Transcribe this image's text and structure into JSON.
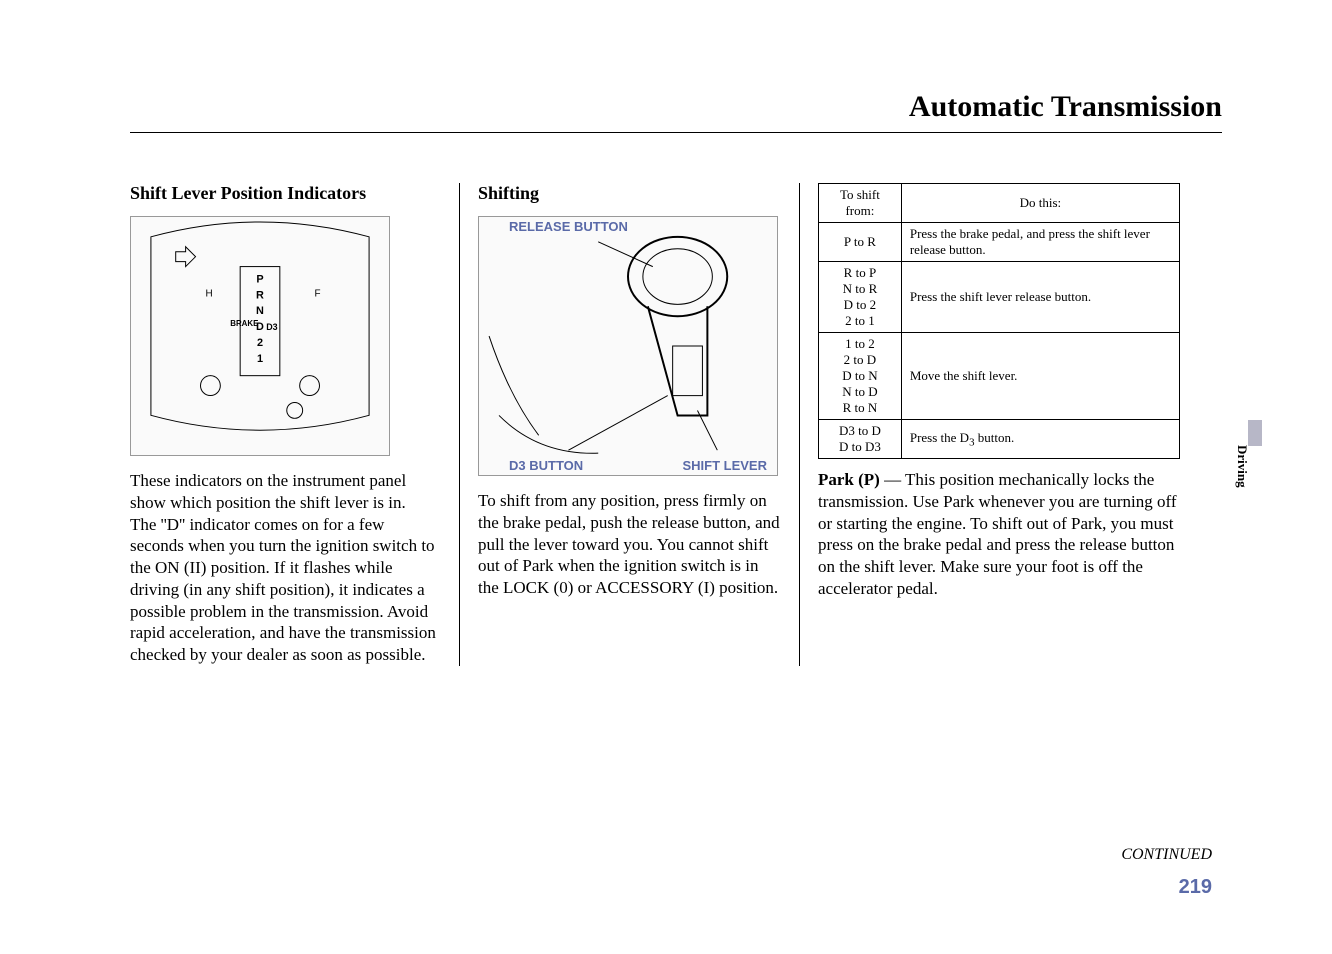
{
  "page_title": "Automatic Transmission",
  "side_tab": "Driving",
  "continued": "CONTINUED",
  "page_number": "219",
  "col1": {
    "heading": "Shift Lever Position Indicators",
    "body": "These indicators on the instrument panel show which position the shift lever is in.\nThe ''D'' indicator comes on for a few seconds when you turn the ignition switch to the ON (II) position. If it flashes while driving (in any shift position), it indicates a possible problem in the transmission. Avoid rapid acceleration, and have the transmission checked by your dealer as soon as possible."
  },
  "col2": {
    "heading": "Shifting",
    "labels": {
      "release": "RELEASE BUTTON",
      "d3": "D3 BUTTON",
      "shift": "SHIFT LEVER"
    },
    "body": "To shift from any position, press firmly on the brake pedal, push the release button, and pull the lever toward you. You cannot shift out of Park when the ignition switch is in the LOCK (0) or ACCESSORY (I) position."
  },
  "col3": {
    "table": {
      "header_from": "To shift from:",
      "header_do": "Do this:",
      "rows": [
        {
          "from": [
            "P to R"
          ],
          "do": "Press the brake pedal, and press the shift lever release button."
        },
        {
          "from": [
            "R to P",
            "N to R",
            "D to 2",
            "2 to 1"
          ],
          "do": "Press the shift lever release button."
        },
        {
          "from": [
            "1 to 2",
            "2 to D",
            "D to N",
            "N to D",
            "R to N"
          ],
          "do": "Move the shift lever."
        },
        {
          "from": [
            "D3 to D",
            "D to D3"
          ],
          "do": "Press the D3 button."
        }
      ]
    },
    "park_label": "Park (P)",
    "park_dash": " — ",
    "park_body": "This position mechanically locks the transmission. Use Park whenever you are turning off or starting the engine. To shift out of Park, you must press on the brake pedal and press the release button on the shift lever. Make sure your foot is off the accelerator pedal."
  }
}
